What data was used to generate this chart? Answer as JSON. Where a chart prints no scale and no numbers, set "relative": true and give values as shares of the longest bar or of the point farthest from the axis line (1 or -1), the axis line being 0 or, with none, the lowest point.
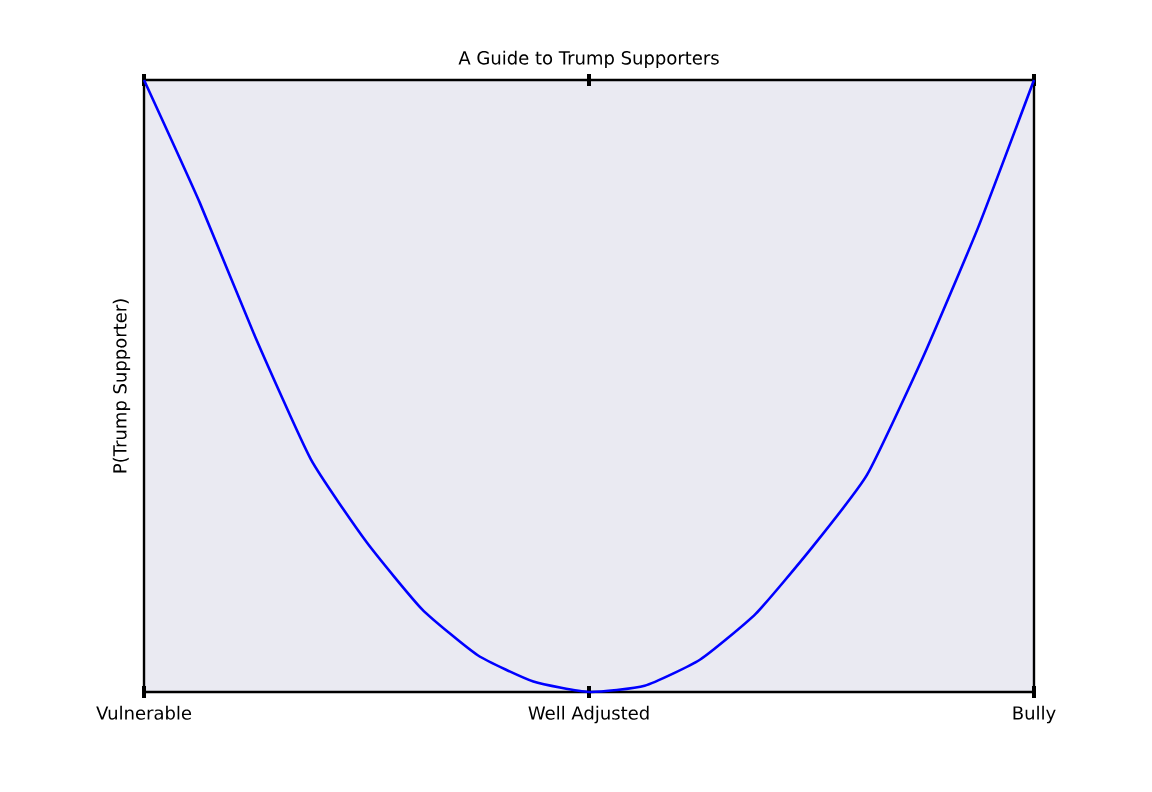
{
  "chart_data": {
    "type": "line",
    "title": "A Guide to Trump Supporters",
    "ylabel": "P(Trump Supporter)",
    "relative": true,
    "categories": [
      "Vulnerable",
      null,
      null,
      null,
      null,
      null,
      null,
      null,
      "Well Adjusted",
      null,
      null,
      null,
      null,
      null,
      null,
      null,
      "Bully"
    ],
    "series": [
      {
        "color": "#0000ff",
        "values": [
          1.0,
          0.8,
          0.58,
          0.38,
          0.245,
          0.135,
          0.06,
          0.017,
          0,
          0.01,
          0.053,
          0.128,
          0.235,
          0.355,
          0.546,
          0.76,
          1.0
        ]
      }
    ]
  }
}
